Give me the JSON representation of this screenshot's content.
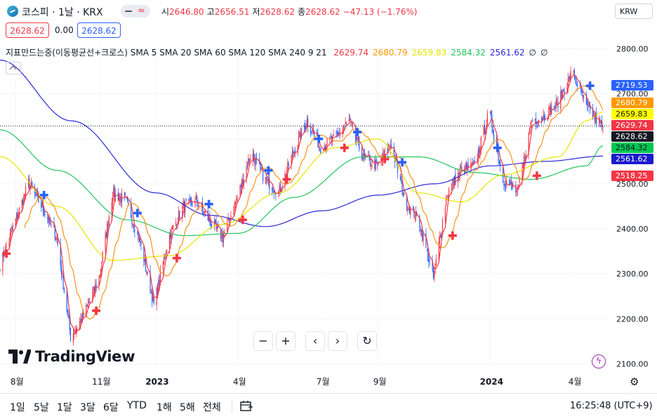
{
  "header": {
    "symbol_title": "코스피 · 1날 · KRX",
    "ohlc": [
      {
        "key": "시",
        "value": "2646.80"
      },
      {
        "key": "고",
        "value": "2656.51"
      },
      {
        "key": "저",
        "value": "2628.62"
      },
      {
        "key": "종",
        "value": "2628.62"
      }
    ],
    "change": "−47.13 (−1.76%)",
    "sell_price": "2628.62",
    "spread": "0.00",
    "buy_price": "2628.62",
    "currency": "KRW",
    "icons": [
      "index-logo-icon",
      "chart-mode-toggle-icon",
      "collapse-chevron-icon"
    ]
  },
  "indicator": {
    "name": "지표만드는중(이동평균선+크로스) SMA 5 SMA 20 SMA 60 SMA 120 SMA 240 9 21",
    "values": [
      {
        "text": "2629.74",
        "color": "#f23645"
      },
      {
        "text": "2680.79",
        "color": "#ff9800"
      },
      {
        "text": "2659.83",
        "color": "#e6e600"
      },
      {
        "text": "2584.32",
        "color": "#22c55e"
      },
      {
        "text": "2561.62",
        "color": "#2a2ad8"
      },
      {
        "text": "∅",
        "color": "#131722"
      },
      {
        "text": "∅",
        "color": "#131722"
      }
    ]
  },
  "price_tags": [
    {
      "text": "2719.53",
      "value": 2719.53,
      "bg": "#2962ff",
      "fg": "#ffffff"
    },
    {
      "text": "2680.79",
      "value": 2680.79,
      "bg": "#ff9800",
      "fg": "#ffffff"
    },
    {
      "text": "2659.83",
      "value": 2659.83,
      "bg": "#ffff00",
      "fg": "#131722"
    },
    {
      "text": "2629.74",
      "value": 2629.74,
      "bg": "#f23645",
      "fg": "#ffffff"
    },
    {
      "text": "2628.62",
      "value": 2628.62,
      "bg": "#131722",
      "fg": "#ffffff"
    },
    {
      "text": "2584.32",
      "value": 2584.32,
      "bg": "#00c853",
      "fg": "#131722"
    },
    {
      "text": "2561.62",
      "value": 2561.62,
      "bg": "#1a1acc",
      "fg": "#ffffff"
    },
    {
      "text": "2518.25",
      "value": 2518.25,
      "bg": "#f23645",
      "fg": "#ffffff"
    }
  ],
  "chart_data": {
    "type": "candlestick",
    "price_axis": {
      "ticks": [
        "2800.00",
        "2700.00",
        "2600.00",
        "2500.00",
        "2400.00",
        "2300.00",
        "2200.00",
        "2100.00"
      ],
      "range": [
        2085,
        2815
      ]
    },
    "time_axis": {
      "labels": [
        "8월",
        "11월",
        "2023",
        "4월",
        "7월",
        "9월",
        "2024",
        "4월"
      ],
      "bold": [
        "2023",
        "2024"
      ],
      "range": [
        "2022-07-15",
        "2024-05-10"
      ]
    },
    "last_close": 2628.62,
    "close_path": [
      [
        "2022-07-15",
        2320
      ],
      [
        "2022-08-15",
        2500
      ],
      [
        "2022-09-01",
        2440
      ],
      [
        "2022-09-15",
        2380
      ],
      [
        "2022-09-30",
        2160
      ],
      [
        "2022-10-15",
        2210
      ],
      [
        "2022-10-31",
        2290
      ],
      [
        "2022-11-15",
        2480
      ],
      [
        "2022-11-30",
        2460
      ],
      [
        "2022-12-15",
        2370
      ],
      [
        "2022-12-30",
        2230
      ],
      [
        "2023-01-15",
        2380
      ],
      [
        "2023-01-31",
        2450
      ],
      [
        "2023-02-15",
        2460
      ],
      [
        "2023-02-28",
        2420
      ],
      [
        "2023-03-15",
        2380
      ],
      [
        "2023-03-31",
        2470
      ],
      [
        "2023-04-15",
        2570
      ],
      [
        "2023-04-30",
        2510
      ],
      [
        "2023-05-15",
        2480
      ],
      [
        "2023-05-31",
        2570
      ],
      [
        "2023-06-15",
        2640
      ],
      [
        "2023-06-30",
        2580
      ],
      [
        "2023-07-15",
        2600
      ],
      [
        "2023-07-31",
        2640
      ],
      [
        "2023-08-15",
        2560
      ],
      [
        "2023-08-31",
        2540
      ],
      [
        "2023-09-15",
        2590
      ],
      [
        "2023-09-30",
        2460
      ],
      [
        "2023-10-15",
        2420
      ],
      [
        "2023-10-31",
        2290
      ],
      [
        "2023-11-15",
        2480
      ],
      [
        "2023-11-30",
        2530
      ],
      [
        "2023-12-15",
        2540
      ],
      [
        "2023-12-31",
        2660
      ],
      [
        "2024-01-15",
        2510
      ],
      [
        "2024-01-31",
        2480
      ],
      [
        "2024-02-15",
        2640
      ],
      [
        "2024-02-28",
        2650
      ],
      [
        "2024-03-15",
        2680
      ],
      [
        "2024-03-31",
        2750
      ],
      [
        "2024-04-15",
        2670
      ],
      [
        "2024-04-30",
        2630
      ],
      [
        "2024-05-03",
        2628.62
      ]
    ],
    "series": [
      {
        "name": "SMA 5",
        "color": "#f23645",
        "values": []
      },
      {
        "name": "SMA 20",
        "color": "#f7931a",
        "values": []
      },
      {
        "name": "SMA 60",
        "color": "#e6e600",
        "values": []
      },
      {
        "name": "SMA 120",
        "color": "#22c55e",
        "values": []
      },
      {
        "name": "SMA 240",
        "color": "#2a2ad8",
        "values": []
      }
    ],
    "sma240_path": [
      [
        "2022-07-15",
        2775
      ],
      [
        "2022-10-01",
        2640
      ],
      [
        "2023-01-01",
        2480
      ],
      [
        "2023-03-01",
        2430
      ],
      [
        "2023-05-01",
        2405
      ],
      [
        "2023-07-01",
        2440
      ],
      [
        "2023-09-01",
        2475
      ],
      [
        "2023-11-01",
        2500
      ],
      [
        "2024-01-01",
        2540
      ],
      [
        "2024-03-01",
        2550
      ],
      [
        "2024-05-03",
        2561.62
      ]
    ],
    "sma120_path": [
      [
        "2022-07-15",
        2620
      ],
      [
        "2022-09-15",
        2530
      ],
      [
        "2022-12-01",
        2420
      ],
      [
        "2023-02-01",
        2385
      ],
      [
        "2023-04-01",
        2390
      ],
      [
        "2023-06-01",
        2470
      ],
      [
        "2023-08-15",
        2560
      ],
      [
        "2023-10-15",
        2560
      ],
      [
        "2023-12-15",
        2525
      ],
      [
        "2024-02-15",
        2510
      ],
      [
        "2024-04-15",
        2540
      ],
      [
        "2024-05-03",
        2584.32
      ]
    ],
    "sma60_path": [
      [
        "2022-07-15",
        2560
      ],
      [
        "2022-09-15",
        2450
      ],
      [
        "2022-11-15",
        2330
      ],
      [
        "2023-01-15",
        2340
      ],
      [
        "2023-03-15",
        2410
      ],
      [
        "2023-05-15",
        2480
      ],
      [
        "2023-07-15",
        2580
      ],
      [
        "2023-08-31",
        2600
      ],
      [
        "2023-10-15",
        2480
      ],
      [
        "2023-12-01",
        2460
      ],
      [
        "2024-01-15",
        2520
      ],
      [
        "2024-03-15",
        2560
      ],
      [
        "2024-04-15",
        2640
      ],
      [
        "2024-05-03",
        2659.83
      ]
    ],
    "markers": [
      {
        "date": "2022-07-22",
        "price": 2345,
        "kind": "golden",
        "color": "#f23645"
      },
      {
        "date": "2022-09-01",
        "price": 2475,
        "kind": "dead",
        "color": "#2962ff"
      },
      {
        "date": "2022-10-28",
        "price": 2218,
        "kind": "golden",
        "color": "#f23645"
      },
      {
        "date": "2022-12-12",
        "price": 2435,
        "kind": "dead",
        "color": "#2962ff"
      },
      {
        "date": "2023-01-24",
        "price": 2335,
        "kind": "golden",
        "color": "#f23645"
      },
      {
        "date": "2023-02-28",
        "price": 2455,
        "kind": "dead",
        "color": "#2962ff"
      },
      {
        "date": "2023-04-06",
        "price": 2420,
        "kind": "golden",
        "color": "#f23645"
      },
      {
        "date": "2023-05-04",
        "price": 2530,
        "kind": "dead",
        "color": "#2962ff"
      },
      {
        "date": "2023-05-24",
        "price": 2510,
        "kind": "golden",
        "color": "#f23645"
      },
      {
        "date": "2023-06-28",
        "price": 2600,
        "kind": "dead",
        "color": "#2962ff"
      },
      {
        "date": "2023-07-26",
        "price": 2580,
        "kind": "golden",
        "color": "#f23645"
      },
      {
        "date": "2023-08-09",
        "price": 2615,
        "kind": "dead",
        "color": "#2962ff"
      },
      {
        "date": "2023-09-08",
        "price": 2555,
        "kind": "golden",
        "color": "#f23645"
      },
      {
        "date": "2023-09-27",
        "price": 2548,
        "kind": "dead",
        "color": "#2962ff"
      },
      {
        "date": "2023-11-21",
        "price": 2385,
        "kind": "golden",
        "color": "#f23645"
      },
      {
        "date": "2024-01-09",
        "price": 2580,
        "kind": "dead",
        "color": "#2962ff"
      },
      {
        "date": "2024-02-21",
        "price": 2518,
        "kind": "golden",
        "color": "#f23645"
      },
      {
        "date": "2024-04-19",
        "price": 2718,
        "kind": "dead",
        "color": "#2962ff"
      }
    ]
  },
  "logo": {
    "text": "TradingView"
  },
  "zoom_controls": {
    "zoom_out": "−",
    "zoom_in": "+",
    "scroll_left": "‹",
    "scroll_right": "›",
    "reset": "↻"
  },
  "bottom_bar": {
    "ranges": [
      "1일",
      "5날",
      "1달",
      "3달",
      "6달",
      "YTD",
      "1해",
      "5해",
      "전체"
    ],
    "clock": "16:25:48 (UTC+9)"
  }
}
